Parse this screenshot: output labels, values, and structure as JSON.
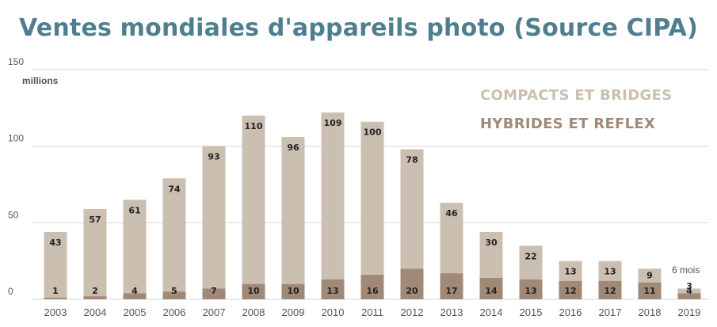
{
  "title": "Ventes mondiales d'appareils photo (Source CIPA)",
  "colors": {
    "title": "#4f7f8f",
    "compacts": "#cbbfb1",
    "hybrides": "#a08a77",
    "grid": "#d8d8d8",
    "text": "#222222",
    "axis_text": "#555555"
  },
  "annotation": "6 mois",
  "chart_data": {
    "type": "bar",
    "stacked": true,
    "title": "Ventes mondiales d'appareils photo (Source CIPA)",
    "ylabel": "millions",
    "ylim": [
      0,
      150
    ],
    "yticks": [
      "0",
      "50",
      "100",
      "150"
    ],
    "grid": true,
    "legend_position": "top-right",
    "categories": [
      "2003",
      "2004",
      "2005",
      "2006",
      "2007",
      "2008",
      "2009",
      "2010",
      "2011",
      "2012",
      "2013",
      "2014",
      "2015",
      "2016",
      "2017",
      "2018",
      "2019"
    ],
    "series": [
      {
        "name": "HYBRIDES ET REFLEX",
        "values": [
          1,
          2,
          4,
          5,
          7,
          10,
          10,
          13,
          16,
          20,
          17,
          14,
          13,
          12,
          12,
          11,
          4
        ]
      },
      {
        "name": "COMPACTS ET BRIDGES",
        "values": [
          43,
          57,
          61,
          74,
          93,
          110,
          96,
          109,
          100,
          78,
          46,
          30,
          22,
          13,
          13,
          9,
          3
        ]
      }
    ]
  }
}
